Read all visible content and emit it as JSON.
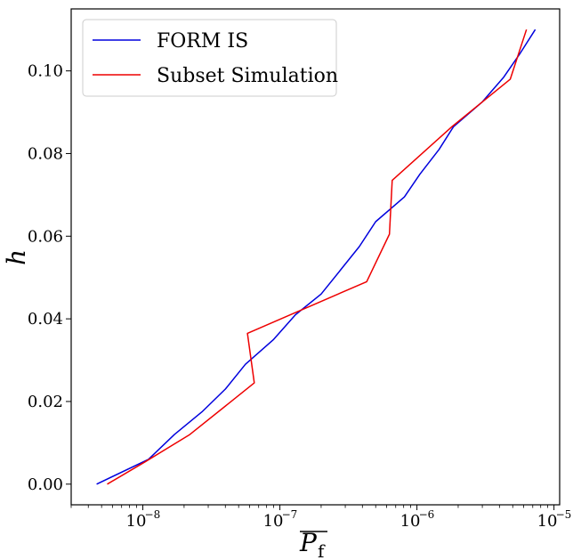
{
  "chart_data": {
    "type": "line",
    "xscale": "log",
    "xlim": [
      3e-09,
      1.1e-05
    ],
    "ylim": [
      -0.005,
      0.115
    ],
    "xticks": [
      {
        "value": 1e-08,
        "base": "10",
        "exp": "−8"
      },
      {
        "value": 1e-07,
        "base": "10",
        "exp": "−7"
      },
      {
        "value": 1e-06,
        "base": "10",
        "exp": "−6"
      },
      {
        "value": 1e-05,
        "base": "10",
        "exp": "−5"
      }
    ],
    "yticks": [
      {
        "value": 0.0,
        "label": "0.00"
      },
      {
        "value": 0.02,
        "label": "0.02"
      },
      {
        "value": 0.04,
        "label": "0.04"
      },
      {
        "value": 0.06,
        "label": "0.06"
      },
      {
        "value": 0.08,
        "label": "0.08"
      },
      {
        "value": 0.1,
        "label": "0.10"
      }
    ],
    "xlabel_main": "P",
    "xlabel_sub": "f",
    "ylabel": "h",
    "legend_position": "upper-left",
    "grid": false,
    "series": [
      {
        "name": "FORM IS",
        "color": "#0000dd",
        "x": [
          4.6e-09,
          1.1e-08,
          1.7e-08,
          2.7e-08,
          4e-08,
          5.6e-08,
          9e-08,
          1.3e-07,
          2e-07,
          2.8e-07,
          3.8e-07,
          5e-07,
          8.1e-07,
          1.05e-06,
          1.45e-06,
          1.85e-06,
          3e-06,
          4.3e-06,
          5.6e-06,
          7.3e-06
        ],
        "y": [
          0.0,
          0.006,
          0.012,
          0.0175,
          0.023,
          0.029,
          0.035,
          0.041,
          0.046,
          0.052,
          0.0575,
          0.0635,
          0.0695,
          0.075,
          0.081,
          0.0865,
          0.0925,
          0.0985,
          0.104,
          0.11
        ]
      },
      {
        "name": "Subset Simulation",
        "color": "#ee0000",
        "x": [
          5.5e-09,
          1.05e-08,
          2.2e-08,
          6.5e-08,
          5.8e-08,
          4.3e-07,
          6.3e-07,
          6.6e-07,
          1.8e-06,
          4.8e-06,
          6.3e-06
        ],
        "y": [
          0.0,
          0.0055,
          0.012,
          0.0245,
          0.0365,
          0.049,
          0.0605,
          0.0735,
          0.0865,
          0.098,
          0.11
        ]
      }
    ]
  }
}
